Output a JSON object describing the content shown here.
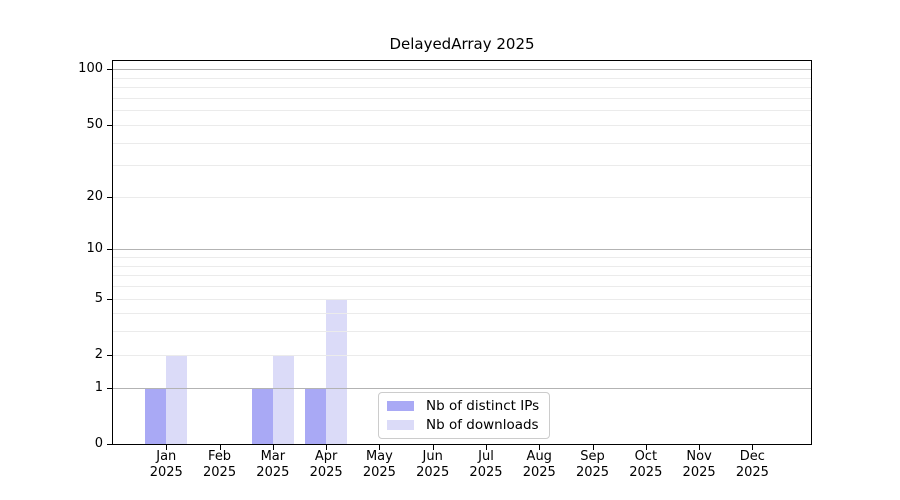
{
  "title": "DelayedArray 2025",
  "chart_data": {
    "type": "bar",
    "title": "DelayedArray 2025",
    "categories": [
      "Jan 2025",
      "Feb 2025",
      "Mar 2025",
      "Apr 2025",
      "May 2025",
      "Jun 2025",
      "Jul 2025",
      "Aug 2025",
      "Sep 2025",
      "Oct 2025",
      "Nov 2025",
      "Dec 2025"
    ],
    "x_tick_months": [
      "Jan",
      "Feb",
      "Mar",
      "Apr",
      "May",
      "Jun",
      "Jul",
      "Aug",
      "Sep",
      "Oct",
      "Nov",
      "Dec"
    ],
    "x_tick_year": "2025",
    "series": [
      {
        "name": "Nb of distinct IPs",
        "color": "#a9a9f5",
        "values": [
          1,
          0,
          1,
          1,
          0,
          0,
          0,
          0,
          0,
          0,
          0,
          0
        ]
      },
      {
        "name": "Nb of downloads",
        "color": "#dbdbf8",
        "values": [
          2,
          0,
          2,
          5,
          0,
          0,
          0,
          0,
          0,
          0,
          0,
          0
        ]
      }
    ],
    "yscale": "log10(1+x)",
    "ylim": [
      0,
      111
    ],
    "yticks": [
      0,
      1,
      2,
      5,
      10,
      20,
      50,
      100
    ],
    "ytick_labels": [
      "0",
      "1",
      "2",
      "5",
      "10",
      "20",
      "50",
      "100"
    ],
    "major_gridlines": [
      1,
      10,
      100
    ],
    "minor_gridlines": [
      2,
      3,
      4,
      5,
      6,
      7,
      8,
      9,
      20,
      30,
      40,
      50,
      60,
      70,
      80,
      90
    ],
    "grid": true,
    "legend_position": "lower center inside"
  },
  "colors": {
    "major_grid": "#b3b3b3",
    "minor_grid": "#ebebeb",
    "axis": "#000000",
    "background": "#ffffff",
    "legend_border": "#cccccc"
  }
}
